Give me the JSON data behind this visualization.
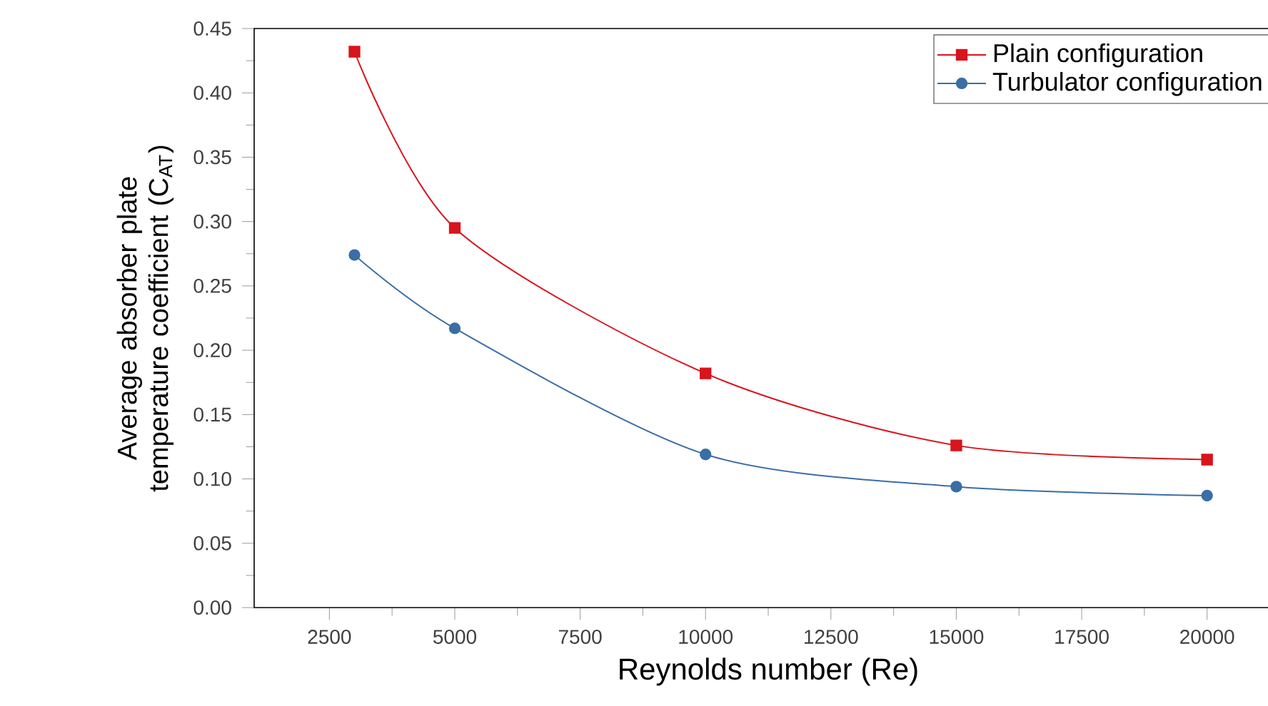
{
  "chart_data": {
    "type": "line",
    "xlabel": "Reynolds number (Re)",
    "ylabel": "Average absorber plate temperature coefficient (C$_{AT}$)",
    "x": [
      3000,
      5000,
      10000,
      15000,
      20000
    ],
    "series": [
      {
        "name": "Plain configuration",
        "color": "#d8141c",
        "marker": "square",
        "values": [
          0.432,
          0.295,
          0.182,
          0.126,
          0.115
        ]
      },
      {
        "name": "Turbulator configuration",
        "color": "#3a6ea5",
        "marker": "circle",
        "values": [
          0.274,
          0.217,
          0.119,
          0.094,
          0.087
        ]
      }
    ],
    "xlim": [
      1000,
      21500
    ],
    "xticks": [
      2500,
      5000,
      7500,
      10000,
      12500,
      15000,
      17500,
      20000
    ],
    "ylim": [
      0,
      0.45
    ],
    "yticks": [
      {
        "value": 0,
        "label": "0.00"
      },
      {
        "value": 0.05,
        "label": "0.05"
      },
      {
        "value": 0.1,
        "label": "0.10"
      },
      {
        "value": 0.15,
        "label": "0.15"
      },
      {
        "value": 0.2,
        "label": "0.20"
      },
      {
        "value": 0.25,
        "label": "0.25"
      },
      {
        "value": 0.3,
        "label": "0.30"
      },
      {
        "value": 0.35,
        "label": "0.35"
      },
      {
        "value": 0.4,
        "label": "0.40"
      },
      {
        "value": 0.45,
        "label": "0.45"
      }
    ],
    "legend": "top right",
    "grid": false
  }
}
